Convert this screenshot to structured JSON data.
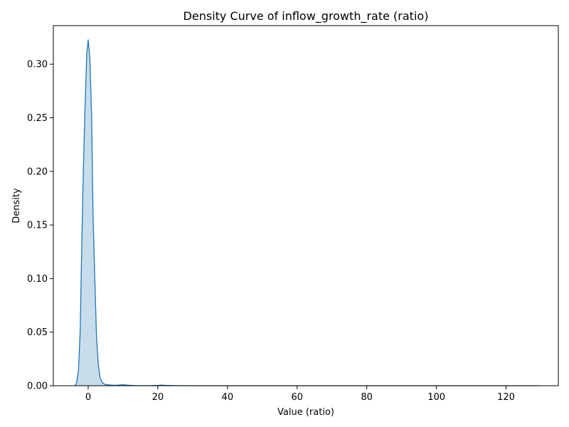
{
  "chart_data": {
    "type": "area",
    "title": "Density Curve of inflow_growth_rate (ratio)",
    "xlabel": "Value (ratio)",
    "ylabel": "Density",
    "xlim": [
      -10,
      135
    ],
    "ylim": [
      0,
      0.336
    ],
    "x_ticks": [
      0,
      20,
      40,
      60,
      80,
      100,
      120
    ],
    "x_tick_labels": [
      "0",
      "20",
      "40",
      "60",
      "80",
      "100",
      "120"
    ],
    "y_ticks": [
      0,
      0.05,
      0.1,
      0.15,
      0.2,
      0.25,
      0.3
    ],
    "y_tick_labels": [
      "0.00",
      "0.05",
      "0.10",
      "0.15",
      "0.20",
      "0.25",
      "0.30"
    ],
    "grid": false,
    "colors": {
      "line": "#1f77b4",
      "fill": "#1f77b4",
      "fill_opacity": 0.25
    },
    "series": [
      {
        "x": [
          -3.8,
          -3.3,
          -2.8,
          -2.3,
          -1.9,
          -1.4,
          -0.9,
          -0.4,
          0.0,
          0.5,
          1.0,
          1.4,
          1.9,
          2.4,
          2.9,
          3.4,
          4.0,
          4.8,
          5.8,
          7.0,
          8.5,
          10.0,
          11.5,
          13.0,
          15.0,
          17.5,
          20.0,
          21.0,
          22.5,
          25.0,
          30.0,
          40.0,
          50.0,
          60.0,
          70.0,
          80.0,
          90.0,
          100.0,
          110.0,
          120.0,
          129.0
        ],
        "y": [
          0.0,
          0.003,
          0.014,
          0.05,
          0.12,
          0.2,
          0.26,
          0.31,
          0.323,
          0.305,
          0.25,
          0.16,
          0.1,
          0.045,
          0.02,
          0.008,
          0.003,
          0.0012,
          0.0008,
          0.0005,
          0.0006,
          0.0009,
          0.0005,
          0.0002,
          0.0001,
          0.0001,
          0.0003,
          0.0006,
          0.0003,
          0.0001,
          0.0,
          0.0,
          0.0,
          0.0,
          0.0,
          0.0,
          0.0,
          0.0,
          0.0,
          0.0,
          0.0
        ]
      }
    ]
  }
}
